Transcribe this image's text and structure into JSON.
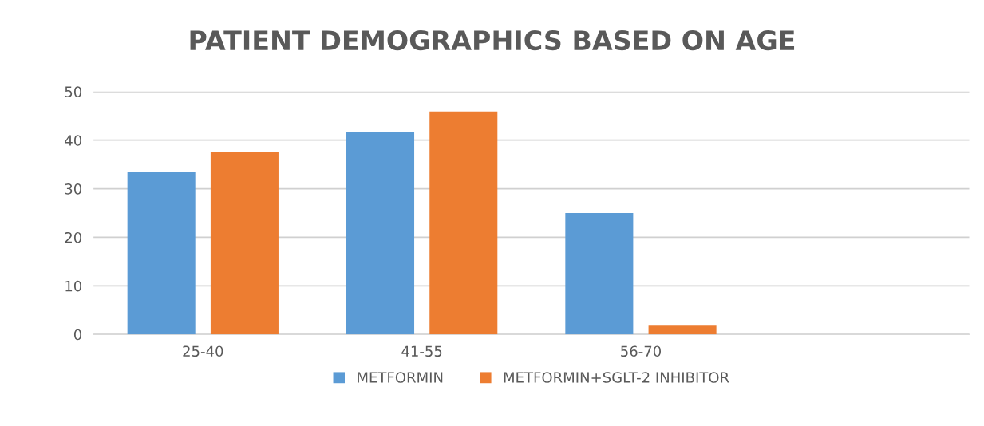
{
  "chart_data": {
    "type": "bar",
    "title": "PATIENT DEMOGRAPHICS BASED ON AGE",
    "categories": [
      "25-40",
      "41-55",
      "56-70",
      null
    ],
    "series": [
      {
        "name": "METFORMIN",
        "color": "#5b9bd5",
        "values": [
          33.4,
          41.6,
          25.0,
          null
        ]
      },
      {
        "name": "METFORMIN+SGLT-2 INHIBITOR",
        "color": "#ed7d31",
        "values": [
          37.5,
          45.9,
          1.8,
          null
        ]
      }
    ],
    "ylim": [
      0,
      50
    ],
    "yticks": [
      0,
      10,
      20,
      30,
      40,
      50
    ],
    "grid": "y",
    "legend": "bottom"
  }
}
